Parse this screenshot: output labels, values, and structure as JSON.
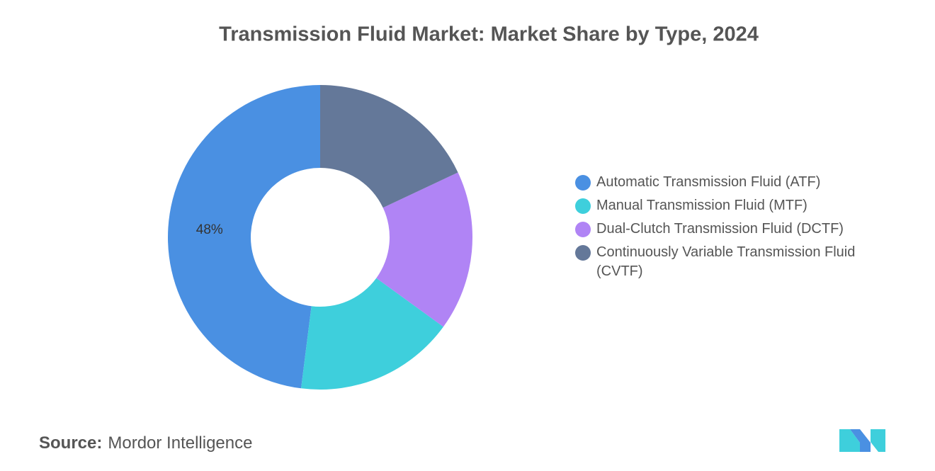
{
  "chart_data": {
    "type": "donut",
    "title": "Transmission Fluid Market: Market Share by Type, 2024",
    "categories": [
      "Automatic Transmission Fluid (ATF)",
      "Manual Transmission Fluid (MTF)",
      "Dual-Clutch Transmission Fluid (DCTF)",
      "Continuously Variable Transmission Fluid (CVTF)"
    ],
    "values": [
      48,
      17,
      17,
      18
    ],
    "value_labels": [
      "48%",
      null,
      null,
      null
    ],
    "colors": [
      "#4a90e2",
      "#3ecfdc",
      "#b084f5",
      "#647899"
    ],
    "legend": "right"
  },
  "source": {
    "label": "Source:",
    "text": "Mordor Intelligence"
  }
}
